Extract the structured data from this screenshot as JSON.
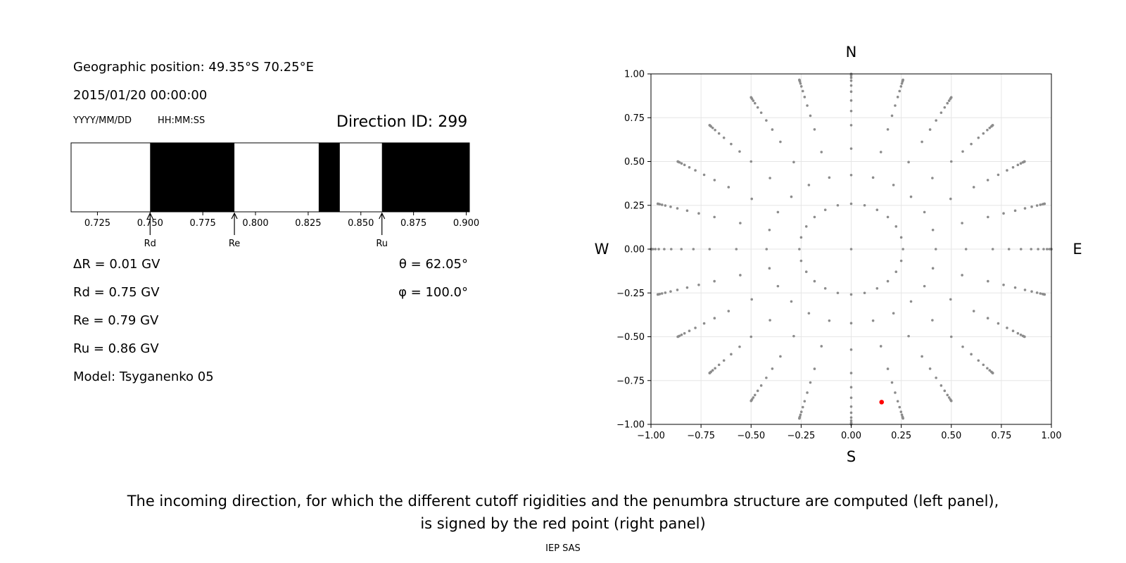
{
  "left_panel": {
    "geo_position": "Geographic position: 49.35°S 70.25°E",
    "datetime": "2015/01/20 00:00:00",
    "date_format": "YYYY/MM/DD",
    "time_format": "HH:MM:SS",
    "direction_id": "Direction ID: 299",
    "delta_r": "ΔR = 0.01 GV",
    "rd": "Rd = 0.75 GV",
    "re": "Re = 0.79 GV",
    "ru": "Ru = 0.86 GV",
    "model": "Model: Tsyganenko 05",
    "theta": "θ = 62.05°",
    "phi": "φ = 100.0°"
  },
  "chart_data": [
    {
      "type": "bar",
      "title": "",
      "xlabel": "",
      "ylabel": "",
      "xlim": [
        0.7125,
        0.9015
      ],
      "xticks": [
        "0.725",
        "0.750",
        "0.775",
        "0.800",
        "0.825",
        "0.850",
        "0.875",
        "0.900"
      ],
      "xtick_values": [
        0.725,
        0.75,
        0.775,
        0.8,
        0.825,
        0.85,
        0.875,
        0.9
      ],
      "forbidden_bands": [
        [
          0.75,
          0.79
        ],
        [
          0.83,
          0.84
        ],
        [
          0.86,
          0.9015
        ]
      ],
      "markers": [
        {
          "label": "Rd",
          "value": 0.75
        },
        {
          "label": "Re",
          "value": 0.79
        },
        {
          "label": "Ru",
          "value": 0.86
        }
      ],
      "colors": {
        "forbidden": "#000000",
        "allowed": "#ffffff"
      }
    },
    {
      "type": "scatter",
      "title": "",
      "xlabel": "",
      "ylabel": "",
      "xlim": [
        -1.0,
        1.0
      ],
      "ylim": [
        -1.0,
        1.0
      ],
      "grid": true,
      "xticks": [
        "−1.00",
        "−0.75",
        "−0.50",
        "−0.25",
        "0.00",
        "0.25",
        "0.50",
        "0.75",
        "1.00"
      ],
      "yticks": [
        "1.00",
        "0.75",
        "0.50",
        "0.25",
        "0.00",
        "−0.25",
        "−0.50",
        "−0.75",
        "−1.00"
      ],
      "compass": {
        "north": "N",
        "south": "S",
        "west": "W",
        "east": "E"
      },
      "grid_directions": {
        "azimuth_step_deg": 15,
        "polar_angles_deg": [
          0,
          15,
          25,
          35,
          45,
          52,
          58,
          64,
          69,
          74,
          78,
          82,
          85,
          88,
          90
        ]
      },
      "selected_point": {
        "x": 0.152,
        "y": -0.873,
        "theta_deg": 62.05,
        "phi_deg": 100.0
      },
      "colors": {
        "grid_points": "#8c8c8c",
        "selected": "#ff0000"
      }
    }
  ],
  "caption": {
    "line1": "The incoming direction, for which the different cutoff rigidities and the penumbra structure are computed (left panel),",
    "line2": "is signed by the red point (right panel)"
  },
  "footer": "IEP SAS"
}
